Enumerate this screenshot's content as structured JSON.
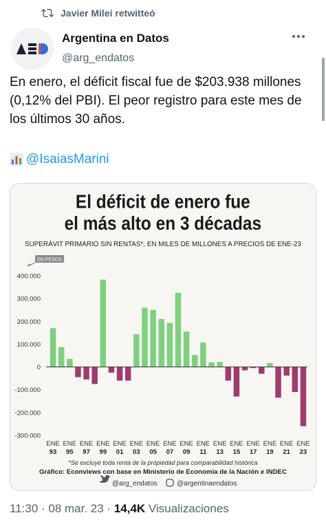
{
  "retweet": {
    "text": "Javier Milei retwitteó"
  },
  "author": {
    "name": "Argentina en Datos",
    "handle": "@arg_endatos",
    "avatar_text": "AED"
  },
  "tweet": {
    "text": "En enero, el déficit fiscal fue de $203.938 millones (0,12% del PBI). El peor registro para este mes de los últimos 30 años.",
    "mention": "@IsaiasMarini"
  },
  "footer": {
    "time": "11:30 · 08 mar. 23 · ",
    "views_count": "14,4K",
    "views_label": " Visualizaciones"
  },
  "chart_data": {
    "type": "bar",
    "title_line1": "El déficit de enero fue",
    "title_line2": "el más alto en 3 décadas",
    "subtitle": "SUPERÁVIT PRIMARIO SIN RENTAS*, EN MILES DE MILLONES A PRECIOS DE ENE-23",
    "unit_tag": "EN PESOS",
    "ylim": [
      -300000,
      400000
    ],
    "yticks": [
      400000,
      300000,
      200000,
      100000,
      0,
      -100000,
      -200000,
      -300000
    ],
    "ytick_labels": [
      "400.000",
      "300.000",
      "200.000",
      "100.000",
      "0",
      "-100.000",
      "-200.000",
      "-300.000"
    ],
    "x_labels": [
      {
        "line1": "ENE",
        "line2": "93",
        "index": 0
      },
      {
        "line1": "ENE",
        "line2": "95",
        "index": 2
      },
      {
        "line1": "ENE",
        "line2": "97",
        "index": 4
      },
      {
        "line1": "ENE",
        "line2": "99",
        "index": 6
      },
      {
        "line1": "ENE",
        "line2": "01",
        "index": 8
      },
      {
        "line1": "ENE",
        "line2": "03",
        "index": 10
      },
      {
        "line1": "ENE",
        "line2": "05",
        "index": 12
      },
      {
        "line1": "ENE",
        "line2": "07",
        "index": 14
      },
      {
        "line1": "ENE",
        "line2": "09",
        "index": 16
      },
      {
        "line1": "ENE",
        "line2": "11",
        "index": 18
      },
      {
        "line1": "ENE",
        "line2": "13",
        "index": 20
      },
      {
        "line1": "ENE",
        "line2": "15",
        "index": 22
      },
      {
        "line1": "ENE",
        "line2": "17",
        "index": 24
      },
      {
        "line1": "ENE",
        "line2": "19",
        "index": 26
      },
      {
        "line1": "ENE",
        "line2": "21",
        "index": 28
      },
      {
        "line1": "ENE",
        "line2": "23",
        "index": 30
      }
    ],
    "years": [
      1993,
      1994,
      1995,
      1996,
      1997,
      1998,
      1999,
      2000,
      2001,
      2002,
      2003,
      2004,
      2005,
      2006,
      2007,
      2008,
      2009,
      2010,
      2011,
      2012,
      2013,
      2014,
      2015,
      2016,
      2017,
      2018,
      2019,
      2020,
      2021,
      2022,
      2023
    ],
    "values": [
      170000,
      87000,
      35000,
      -45000,
      -55000,
      -75000,
      383000,
      -25000,
      -60000,
      -60000,
      143000,
      260000,
      250000,
      210000,
      193000,
      325000,
      155000,
      52000,
      107000,
      20000,
      22000,
      -60000,
      -130000,
      -15000,
      -5000,
      -30000,
      17000,
      -135000,
      -38000,
      -110000,
      -260000
    ],
    "positive_color": "#7ed07f",
    "negative_color": "#a03b6e",
    "footnote": "*Se excluye toda renta de la propiedad para comparabilidad histórica",
    "source": "Gráfico: Econviews con base en Ministerio de Economía de la Nación e INDEC",
    "social_twitter": "@arg_endatos",
    "social_instagram": "@argentinaendatos"
  }
}
